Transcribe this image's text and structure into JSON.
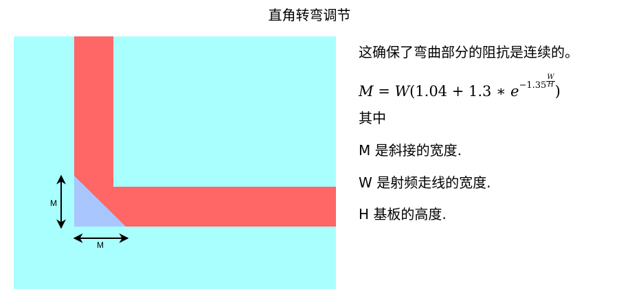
{
  "title": "直角转弯调节",
  "diagram": {
    "labels": {
      "vertical": "M",
      "horizontal": "M"
    },
    "colors": {
      "background": "#a8fffe",
      "trace": "#ff6666",
      "miter": "#a9c6ff",
      "arrow": "#000000"
    }
  },
  "text": {
    "line1": "这确保了弯曲部分的阻抗是连续的。",
    "formula": {
      "lhs": "M",
      "eq": "=",
      "w": "W",
      "open": "(1.04 + 1.3 ∗ ",
      "e": "e",
      "exp": "−1.35",
      "num": "W",
      "den": "H",
      "close": ")"
    },
    "where": "其中",
    "def_m": "M 是斜接的宽度.",
    "def_w": "W 是射频走线的宽度.",
    "def_h": "H 基板的高度."
  }
}
